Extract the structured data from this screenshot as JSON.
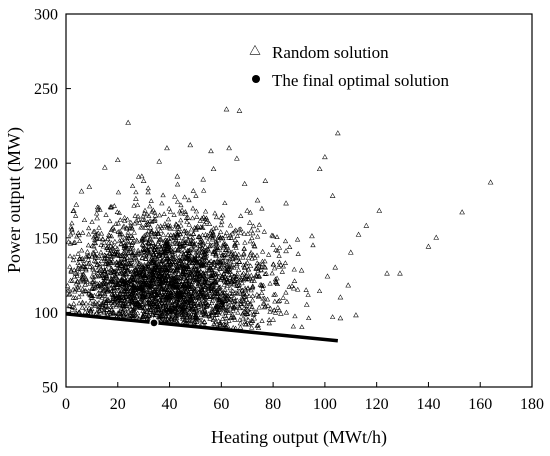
{
  "chart_data": {
    "type": "scatter",
    "title": "",
    "xlabel": "Heating output (MWt/h)",
    "ylabel": "Power output (MW)",
    "xlim": [
      0,
      180
    ],
    "ylim": [
      50,
      300
    ],
    "xticks": [
      0,
      20,
      40,
      60,
      80,
      100,
      120,
      140,
      160,
      180
    ],
    "yticks": [
      50,
      100,
      150,
      200,
      250,
      300
    ],
    "grid": false,
    "legend_position": "top-right",
    "series": [
      {
        "name": "Random solution",
        "marker": "open-triangle",
        "color": "#000000",
        "points": [
          [
            24,
            227
          ],
          [
            62,
            236
          ],
          [
            67,
            235
          ],
          [
            105,
            220
          ],
          [
            164,
            187
          ],
          [
            153,
            167
          ],
          [
            143,
            150
          ],
          [
            140,
            144
          ],
          [
            121,
            168
          ],
          [
            116,
            158
          ],
          [
            113,
            152
          ],
          [
            100,
            204
          ],
          [
            98,
            196
          ],
          [
            103,
            178
          ],
          [
            85,
            173
          ],
          [
            77,
            188
          ],
          [
            71,
            160
          ],
          [
            70,
            168
          ],
          [
            63,
            210
          ],
          [
            66,
            203
          ],
          [
            56,
            208
          ],
          [
            57,
            196
          ],
          [
            48,
            212
          ],
          [
            39,
            210
          ],
          [
            36,
            201
          ],
          [
            20,
            202
          ],
          [
            15,
            197
          ],
          [
            9,
            184
          ],
          [
            6,
            181
          ],
          [
            4,
            172
          ],
          [
            3,
            168
          ],
          [
            2,
            157
          ],
          [
            1,
            147
          ],
          [
            2,
            128
          ],
          [
            5,
            115
          ],
          [
            110,
            140
          ],
          [
            124,
            126
          ],
          [
            129,
            126
          ],
          [
            101,
            124
          ],
          [
            104,
            130
          ],
          [
            109,
            118
          ],
          [
            106,
            110
          ],
          [
            112,
            98
          ],
          [
            106,
            96
          ],
          [
            95,
            151
          ],
          [
            91,
            128
          ],
          [
            85,
            141
          ],
          [
            80,
            151
          ],
          [
            88,
            116
          ],
          [
            93,
            105
          ],
          [
            83,
            99
          ],
          [
            80,
            95
          ],
          [
            74,
            175
          ],
          [
            69,
            186
          ],
          [
            53,
            189
          ],
          [
            43,
            191
          ],
          [
            30,
            188
          ],
          [
            27,
            176
          ],
          [
            12,
            163
          ],
          [
            18,
            141
          ]
        ],
        "cloud_center": [
          38,
          118
        ],
        "cloud_size": 3000
      },
      {
        "name": "The final optimal solution",
        "marker": "filled-circle",
        "color": "#000000",
        "points": [
          [
            34,
            93
          ]
        ]
      }
    ],
    "pareto_front": {
      "from": [
        0,
        99
      ],
      "to": [
        105,
        81
      ]
    }
  }
}
